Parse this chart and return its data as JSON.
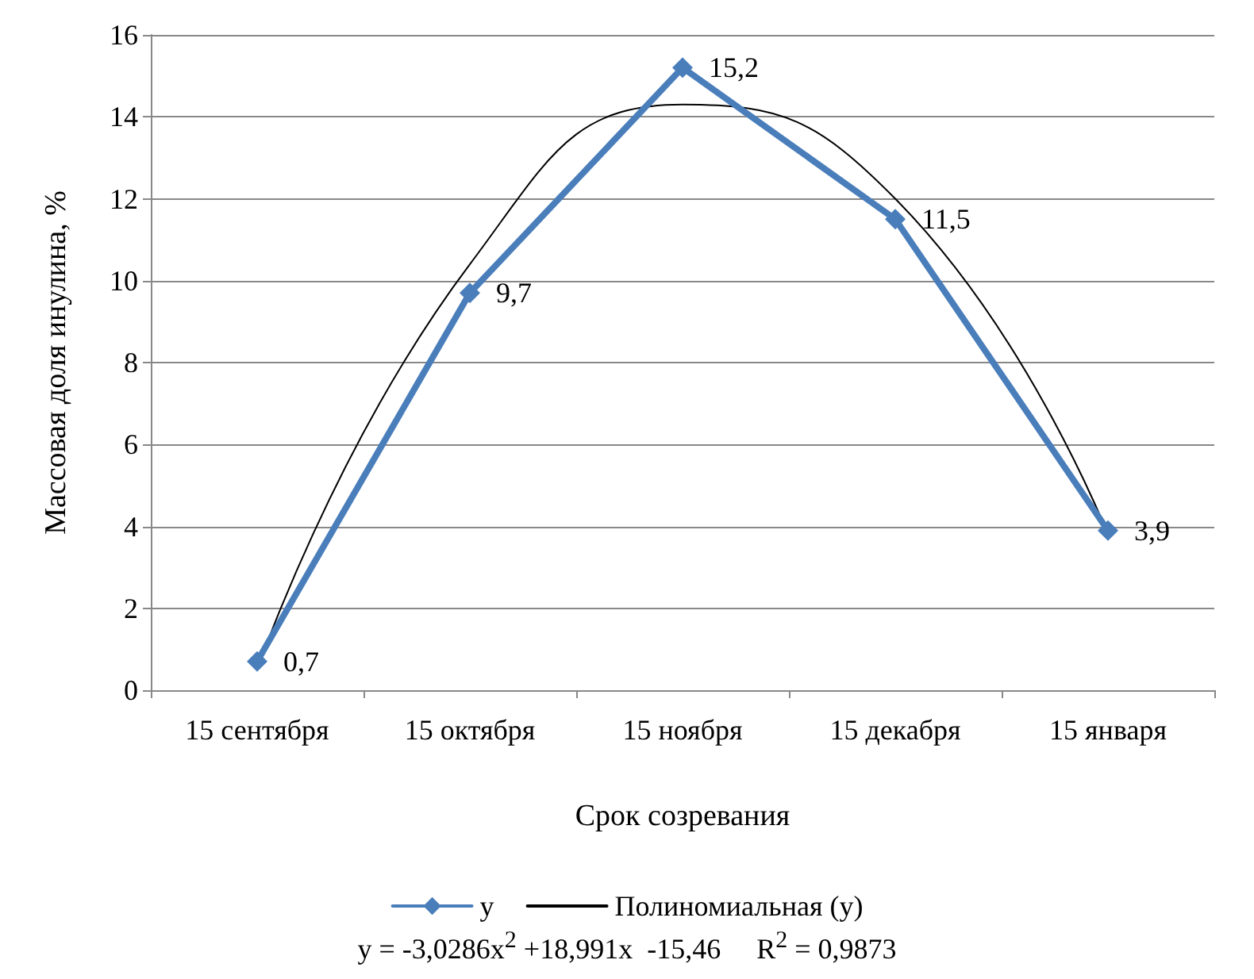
{
  "chart_data": {
    "type": "line",
    "xlabel": "Срок созревания",
    "ylabel": "Массовая доля инулина, %",
    "categories": [
      "15 сентября",
      "15 октября",
      "15 ноября",
      "15 декабря",
      "15 января"
    ],
    "series": [
      {
        "name": "y",
        "color": "#4a7ebb",
        "values": [
          0.7,
          9.7,
          15.2,
          11.5,
          3.9
        ],
        "value_labels": [
          "0,7",
          "9,7",
          "15,2",
          "11,5",
          "3,9"
        ],
        "marker": "diamond"
      },
      {
        "name": "Полиномиальная (y)",
        "color": "#000000",
        "values": [
          0.5,
          10.4,
          14.3,
          12.0,
          3.8
        ],
        "marker": "none"
      }
    ],
    "ylim": [
      0,
      16
    ],
    "yticks": [
      0,
      2,
      4,
      6,
      8,
      10,
      12,
      14,
      16
    ],
    "grid": "y",
    "legend": "bottom",
    "annotations": [
      "y = -3,0286x$^{2}$ +18,991x  -15,46     R$^{2}$ = 0,9873"
    ]
  }
}
